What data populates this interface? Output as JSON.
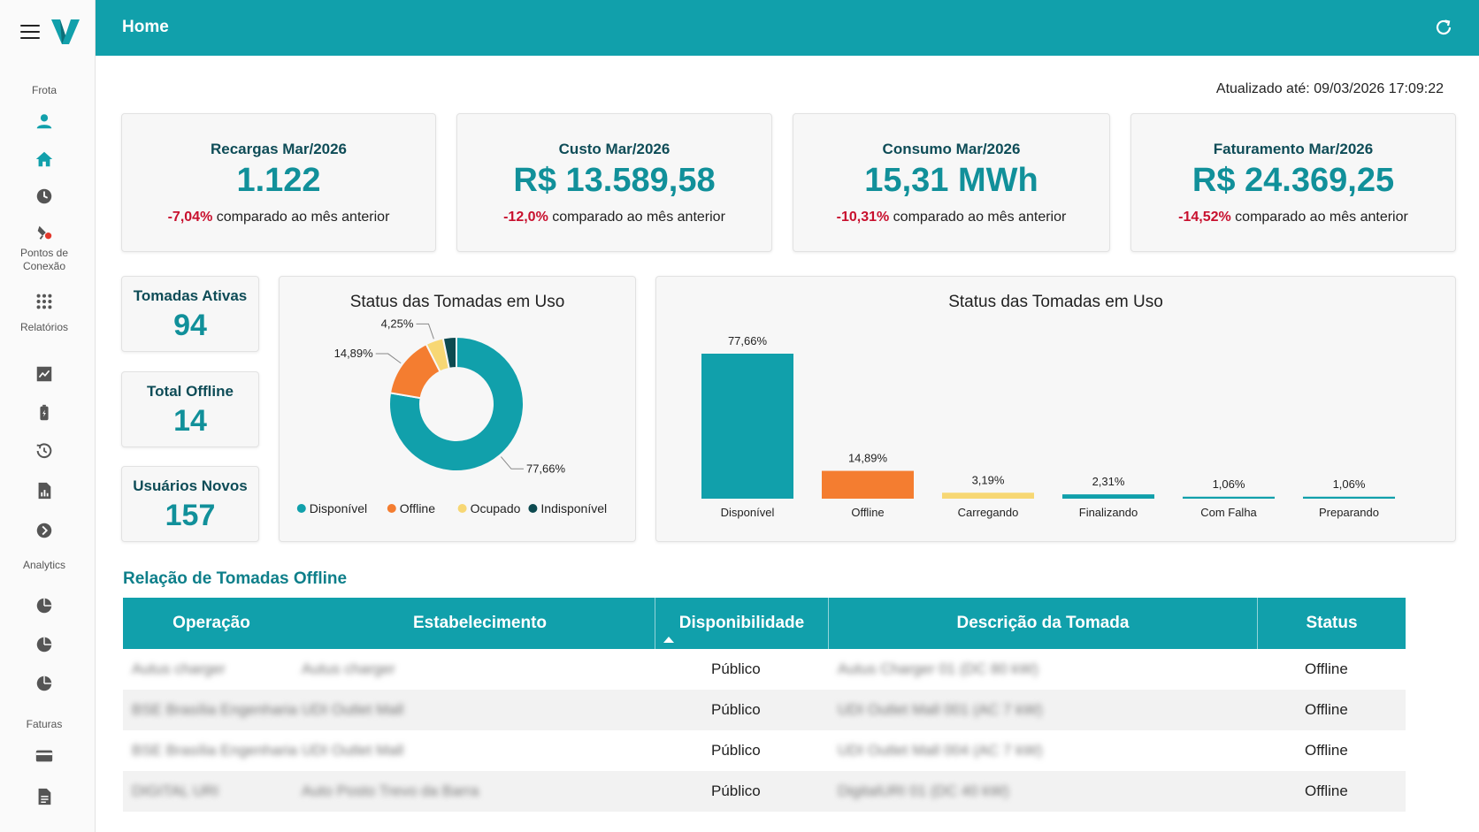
{
  "header": {
    "title": "Home"
  },
  "updated_label": "Atualizado até: 09/03/2026 17:09:22",
  "sidebar": {
    "sections": [
      "Frota",
      "Pontos de Conexão",
      "Relatórios",
      "Analytics",
      "Faturas"
    ]
  },
  "kpis": [
    {
      "label": "Recargas Mar/2026",
      "value": "1.122",
      "delta": "-7,04%",
      "delta_text": " comparado ao mês anterior"
    },
    {
      "label": "Custo Mar/2026",
      "value": "R$ 13.589,58",
      "delta": "-12,0%",
      "delta_text": " comparado ao mês anterior"
    },
    {
      "label": "Consumo Mar/2026",
      "value": "15,31 MWh",
      "delta": "-10,31%",
      "delta_text": " comparado ao mês anterior"
    },
    {
      "label": "Faturamento Mar/2026",
      "value": "R$ 24.369,25",
      "delta": "-14,52%",
      "delta_text": " comparado ao mês anterior"
    }
  ],
  "small_cards": [
    {
      "label": "Tomadas Ativas",
      "value": "94"
    },
    {
      "label": "Total Offline",
      "value": "14"
    },
    {
      "label": "Usuários Novos",
      "value": "157"
    }
  ],
  "colors": {
    "teal": "#11a0ab",
    "orange": "#f47d30",
    "yellow": "#f7d774",
    "dark": "#0d4a50",
    "negative": "#c8102e"
  },
  "chart_data": [
    {
      "type": "pie",
      "title": "Status das Tomadas em Uso",
      "categories": [
        "Disponível",
        "Offline",
        "Ocupado",
        "Indisponível"
      ],
      "values": [
        77.66,
        14.89,
        4.25,
        3.2
      ],
      "labels": [
        "77,66%",
        "14,89%",
        "4,25%",
        ""
      ],
      "colors": [
        "#11a0ab",
        "#f47d30",
        "#f7d774",
        "#0d4a50"
      ],
      "legend": "bottom"
    },
    {
      "type": "bar",
      "title": "Status das Tomadas em Uso",
      "categories": [
        "Disponível",
        "Offline",
        "Carregando",
        "Finalizando",
        "Com Falha",
        "Preparando"
      ],
      "values": [
        77.66,
        14.89,
        3.19,
        2.31,
        1.06,
        1.06
      ],
      "labels": [
        "77,66%",
        "14,89%",
        "3,19%",
        "2,31%",
        "1,06%",
        "1,06%"
      ],
      "colors": [
        "#11a0ab",
        "#f47d30",
        "#f7d774",
        "#11a0ab",
        "#11a0ab",
        "#11a0ab"
      ],
      "ylim": [
        0,
        80
      ]
    }
  ],
  "offline_table": {
    "title": "Relação de Tomadas Offline",
    "columns": [
      "Operação",
      "Estabelecimento",
      "Disponibilidade",
      "Descrição da Tomada",
      "Status"
    ],
    "rows": [
      {
        "operacao": "Autus charger",
        "estabelecimento": "Autus charger",
        "disponibilidade": "Público",
        "descricao": "Autus Charger 01 (DC 80 kW)",
        "status": "Offline"
      },
      {
        "operacao": "BSE Brasília Engenharia",
        "estabelecimento": "UDI Outlet Mall",
        "disponibilidade": "Público",
        "descricao": "UDI Outlet Mall 001 (AC 7 kW)",
        "status": "Offline"
      },
      {
        "operacao": "BSE Brasília Engenharia",
        "estabelecimento": "UDI Outlet Mall",
        "disponibilidade": "Público",
        "descricao": "UDI Outlet Mall 004 (AC 7 kW)",
        "status": "Offline"
      },
      {
        "operacao": "DIGITAL URI",
        "estabelecimento": "Auto Posto Trevo da Barra",
        "disponibilidade": "Público",
        "descricao": "DigitalURI 01 (DC 40 kW)",
        "status": "Offline"
      }
    ]
  }
}
